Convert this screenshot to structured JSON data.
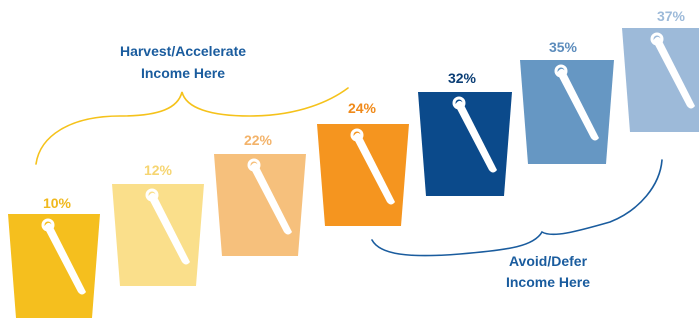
{
  "buckets": [
    {
      "rate": "10%",
      "color": "#F5BF1E",
      "label_color": "#F0B81C"
    },
    {
      "rate": "12%",
      "color": "#FADF8B",
      "label_color": "#F6D571"
    },
    {
      "rate": "22%",
      "color": "#F6C07C",
      "label_color": "#F3B36A"
    },
    {
      "rate": "24%",
      "color": "#F5951F",
      "label_color": "#F08A1A"
    },
    {
      "rate": "32%",
      "color": "#0B4A8B",
      "label_color": "#0B3E75"
    },
    {
      "rate": "35%",
      "color": "#6697C3",
      "label_color": "#5C8CBC"
    },
    {
      "rate": "37%",
      "color": "#9DBAD9",
      "label_color": "#9DBAD9"
    }
  ],
  "groups": {
    "harvest": {
      "line1": "Harvest/Accelerate",
      "line2": "Income Here",
      "color": "#1A5C9E",
      "brace_color": "#F5C21B"
    },
    "avoid": {
      "line1": "Avoid/Defer",
      "line2": "Income Here",
      "color": "#1A5C9E",
      "brace_color": "#1A5C9E"
    }
  },
  "handle_color": "#ffffff"
}
